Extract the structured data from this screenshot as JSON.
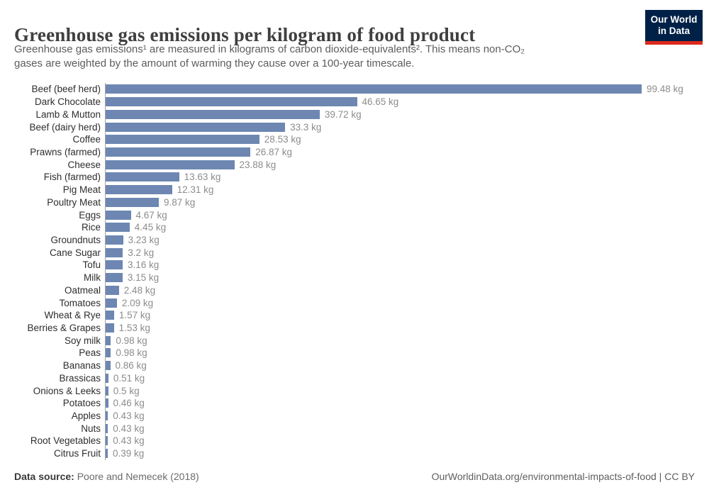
{
  "header": {
    "title": "Greenhouse gas emissions per kilogram of food product",
    "subtitle_line1": "Greenhouse gas emissions¹ are measured in kilograms of carbon dioxide-equivalents². This means non-CO₂",
    "subtitle_line2": "gases are weighted by the amount of warming they cause over a 100-year timescale.",
    "logo": {
      "line1": "Our World",
      "line2": "in Data"
    }
  },
  "footer": {
    "source_label": "Data source:",
    "source_value": "Poore and Nemecek (2018)",
    "credit": "OurWorldinData.org/environmental-impacts-of-food | CC BY"
  },
  "colors": {
    "bar": "#6d87b2",
    "axis_line": "#a3a3a3",
    "logo_bg": "#002147",
    "logo_underline": "#dc2a1e"
  },
  "chart_data": {
    "type": "bar",
    "orientation": "horizontal",
    "title": "Greenhouse gas emissions per kilogram of food product",
    "xlabel": "",
    "ylabel": "",
    "unit": "kg CO2-equivalents per kg of product",
    "xlim": [
      0,
      105
    ],
    "grid": false,
    "legend": "none",
    "categories": [
      "Beef (beef herd)",
      "Dark Chocolate",
      "Lamb & Mutton",
      "Beef (dairy herd)",
      "Coffee",
      "Prawns (farmed)",
      "Cheese",
      "Fish (farmed)",
      "Pig Meat",
      "Poultry Meat",
      "Eggs",
      "Rice",
      "Groundnuts",
      "Cane Sugar",
      "Tofu",
      "Milk",
      "Oatmeal",
      "Tomatoes",
      "Wheat & Rye",
      "Berries & Grapes",
      "Soy milk",
      "Peas",
      "Bananas",
      "Brassicas",
      "Onions & Leeks",
      "Potatoes",
      "Apples",
      "Nuts",
      "Root Vegetables",
      "Citrus Fruit"
    ],
    "values": [
      99.48,
      46.65,
      39.72,
      33.3,
      28.53,
      26.87,
      23.88,
      13.63,
      12.31,
      9.87,
      4.67,
      4.45,
      3.23,
      3.2,
      3.16,
      3.15,
      2.48,
      2.09,
      1.57,
      1.53,
      0.98,
      0.98,
      0.86,
      0.51,
      0.5,
      0.46,
      0.43,
      0.43,
      0.43,
      0.39
    ],
    "value_labels": [
      "99.48 kg",
      "46.65 kg",
      "39.72 kg",
      "33.3 kg",
      "28.53 kg",
      "26.87 kg",
      "23.88 kg",
      "13.63 kg",
      "12.31 kg",
      "9.87 kg",
      "4.67 kg",
      "4.45 kg",
      "3.23 kg",
      "3.2 kg",
      "3.16 kg",
      "3.15 kg",
      "2.48 kg",
      "2.09 kg",
      "1.57 kg",
      "1.53 kg",
      "0.98 kg",
      "0.98 kg",
      "0.86 kg",
      "0.51 kg",
      "0.5 kg",
      "0.46 kg",
      "0.43 kg",
      "0.43 kg",
      "0.43 kg",
      "0.39 kg"
    ]
  }
}
